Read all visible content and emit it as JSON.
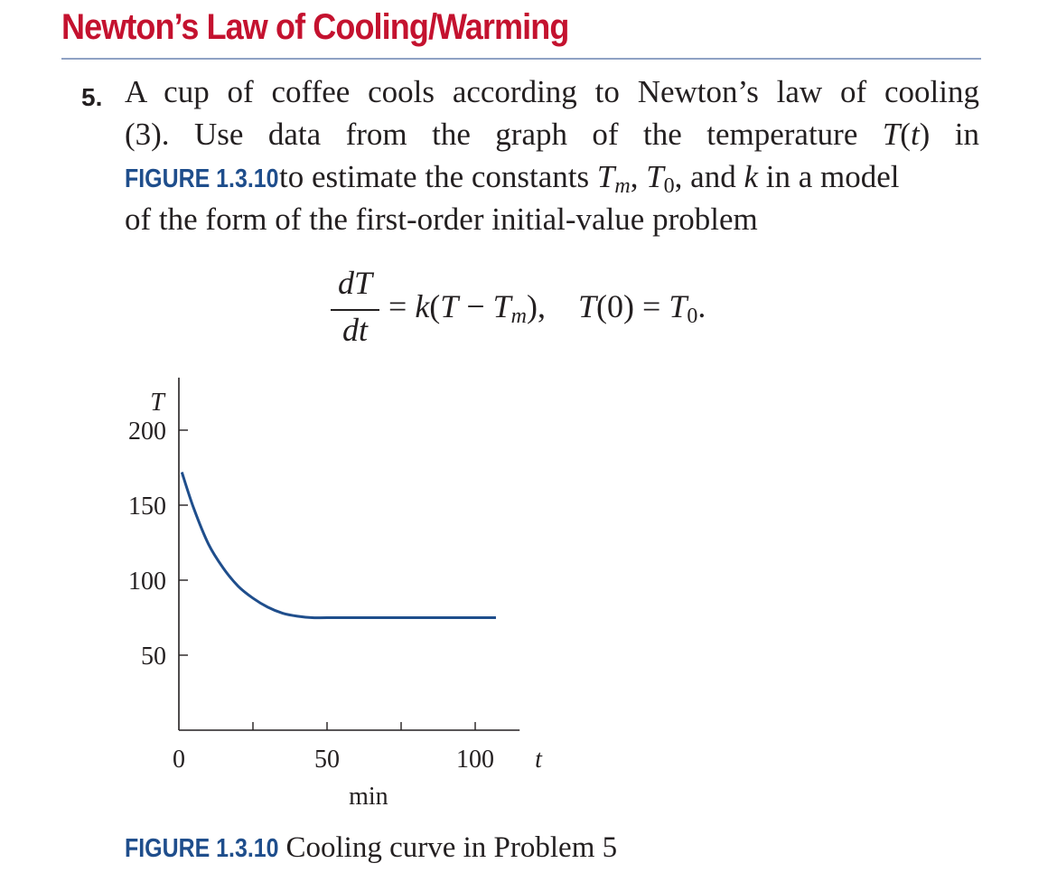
{
  "section": {
    "title": "Newton’s Law of Cooling/Warming"
  },
  "problem": {
    "number": "5.",
    "line1": "A cup of coffee cools according to Newton’s law of cooling",
    "line2_a": "(3). Use data from the graph of the temperature ",
    "line2_T": "T",
    "line2_t": "t",
    "line2_b": ") in",
    "figure_ref": "FIGURE 1.3.10",
    "line3_a": " to estimate the constants ",
    "line3_and": ", and ",
    "line3_k": "k",
    "line3_b": " in a model",
    "line4": "of the form of the first-order initial-value problem"
  },
  "equation": {
    "numerator": "dT",
    "denominator": "dt",
    "rhs_a": " = ",
    "rhs_k": "k",
    "rhs_T": "T",
    "rhs_minus": " − ",
    "rhs_Tm": "T",
    "rhs_m": "m",
    "rhs_init": "T",
    "rhs_zero": "(0) = ",
    "rhs_T0": "T",
    "rhs_sub0": "0"
  },
  "chart_data": {
    "type": "line",
    "ylabel": "T",
    "xlabel": "t",
    "x_unit": "min",
    "x_ticks": [
      0,
      25,
      50,
      75,
      100
    ],
    "x_tick_labels": [
      "0",
      "50",
      "100"
    ],
    "x_tick_label_values": [
      0,
      50,
      100
    ],
    "y_ticks": [
      50,
      100,
      150,
      200
    ],
    "y_tick_labels": [
      "50",
      "100",
      "150",
      "200"
    ],
    "xlim": [
      0,
      115
    ],
    "ylim": [
      0,
      235
    ],
    "series": [
      {
        "color": "#1f4e8c",
        "x": [
          1,
          5,
          10,
          15,
          20,
          25,
          30,
          35,
          40,
          45,
          50,
          60,
          70,
          80,
          90,
          100,
          107
        ],
        "y": [
          172,
          148,
          124,
          108,
          96,
          88,
          82,
          78,
          76,
          75,
          75,
          75,
          75,
          75,
          75,
          75,
          75
        ]
      }
    ]
  },
  "caption": {
    "label": "FIGURE 1.3.10",
    "text": " Cooling curve in Problem 5"
  }
}
